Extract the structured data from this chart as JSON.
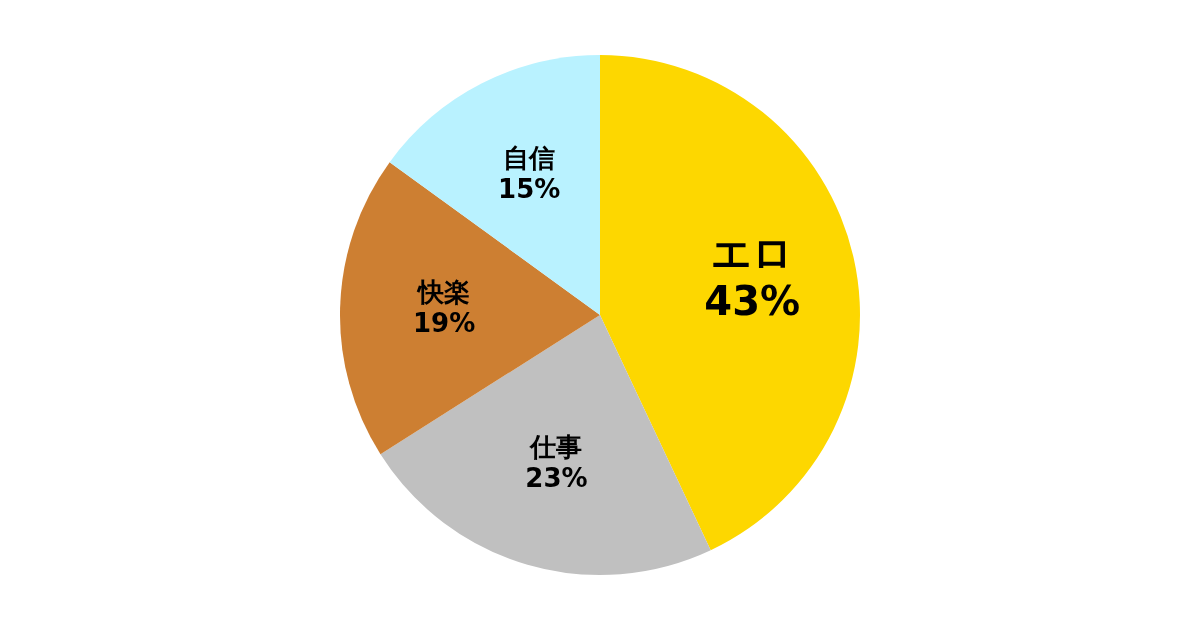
{
  "chart_data": {
    "type": "pie",
    "categories": [
      "エロ",
      "仕事",
      "快楽",
      "自信"
    ],
    "values": [
      43,
      23,
      19,
      15
    ],
    "colors": [
      "#fdd700",
      "#c0c0c0",
      "#cd7f32",
      "#b9f2ff"
    ],
    "value_labels": [
      "43%",
      "23%",
      "19%",
      "15%"
    ]
  }
}
